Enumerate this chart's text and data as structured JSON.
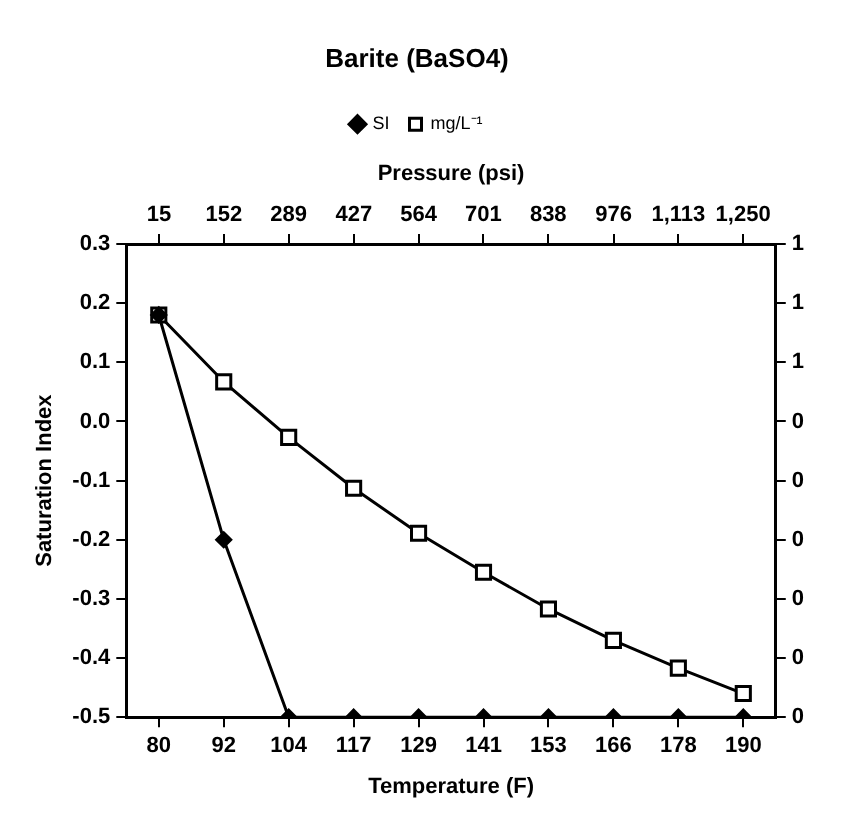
{
  "chart_data": {
    "type": "line",
    "title": "Barite (BaSO4)",
    "xlabel": "Temperature (F)",
    "ylabel": "Saturation Index",
    "x2label": "Pressure (psi)",
    "categories": [
      "80",
      "92",
      "104",
      "117",
      "129",
      "141",
      "153",
      "166",
      "178",
      "190"
    ],
    "series": [
      {
        "name": "SI",
        "color": "#000000",
        "marker": "diamond",
        "values": [
          0.18,
          -0.2,
          -0.5,
          -0.5,
          -0.5,
          -0.5,
          -0.5,
          -0.5,
          -0.5,
          -0.5
        ]
      },
      {
        "name": "mg/L⁻¹",
        "color": "#000000",
        "marker": "square",
        "values": [
          0.18,
          0.067,
          -0.027,
          -0.113,
          -0.189,
          -0.255,
          -0.317,
          -0.37,
          -0.417,
          -0.46
        ]
      }
    ],
    "ylim": [
      -0.5,
      0.3
    ],
    "yticks": [
      {
        "value": -0.5,
        "label": "-0.5"
      },
      {
        "value": -0.4,
        "label": "-0.4"
      },
      {
        "value": -0.3,
        "label": "-0.3"
      },
      {
        "value": -0.2,
        "label": "-0.2"
      },
      {
        "value": -0.1,
        "label": "-0.1"
      },
      {
        "value": 0,
        "label": "0.0"
      },
      {
        "value": 0.1,
        "label": "0.1"
      },
      {
        "value": 0.2,
        "label": "0.2"
      },
      {
        "value": 0.3,
        "label": "0.3"
      }
    ],
    "y2lim": [
      0,
      0.72
    ],
    "y2ticks": [
      {
        "value": 0,
        "label": "0"
      },
      {
        "value": 0.09,
        "label": "0"
      },
      {
        "value": 0.18,
        "label": "0"
      },
      {
        "value": 0.27,
        "label": "0"
      },
      {
        "value": 0.36,
        "label": "0"
      },
      {
        "value": 0.45,
        "label": "0"
      },
      {
        "value": 0.54,
        "label": "1"
      },
      {
        "value": 0.63,
        "label": "1"
      },
      {
        "value": 0.72,
        "label": "1"
      }
    ],
    "x2lim": [
      -54,
      1319
    ],
    "x2ticks": [
      15,
      152,
      289,
      427,
      564,
      701,
      838,
      976,
      {
        "value": 1113,
        "label": "1,113"
      },
      {
        "value": 1250,
        "label": "1,250"
      }
    ],
    "grid": false,
    "legend": "top",
    "line_style": "solid"
  }
}
